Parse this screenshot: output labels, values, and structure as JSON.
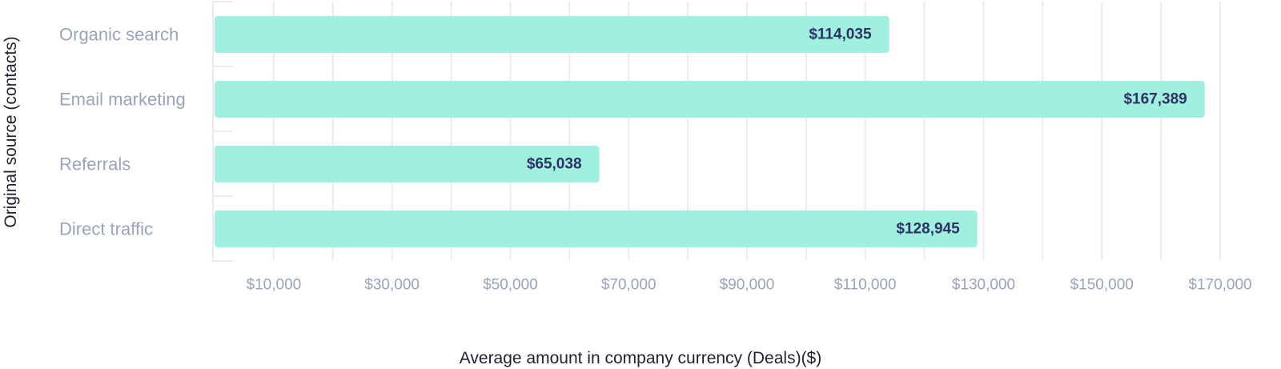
{
  "chart_data": {
    "type": "bar",
    "orientation": "horizontal",
    "categories": [
      "Organic search",
      "Email marketing",
      "Referrals",
      "Direct traffic"
    ],
    "values": [
      114035,
      167389,
      65038,
      128945
    ],
    "value_labels": [
      "$114,035",
      "$167,389",
      "$65,038",
      "$128,945"
    ],
    "xlabel": "Average amount in company currency (Deals)($)",
    "ylabel": "Original source (contacts)",
    "xlim": [
      0,
      170000
    ],
    "x_ticks": [
      10000,
      30000,
      50000,
      70000,
      90000,
      110000,
      130000,
      150000,
      170000
    ],
    "x_tick_labels": [
      "$10,000",
      "$30,000",
      "$50,000",
      "$70,000",
      "$90,000",
      "$110,000",
      "$130,000",
      "$150,000",
      "$170,000"
    ],
    "grid": true,
    "colors": {
      "bar": "#a0f0e0",
      "value_label": "#2d3164",
      "category_label": "#9aa3b8",
      "tick_label": "#9aa3b8",
      "grid": "#e9ebf7",
      "axis_title": "#1f2230"
    }
  }
}
